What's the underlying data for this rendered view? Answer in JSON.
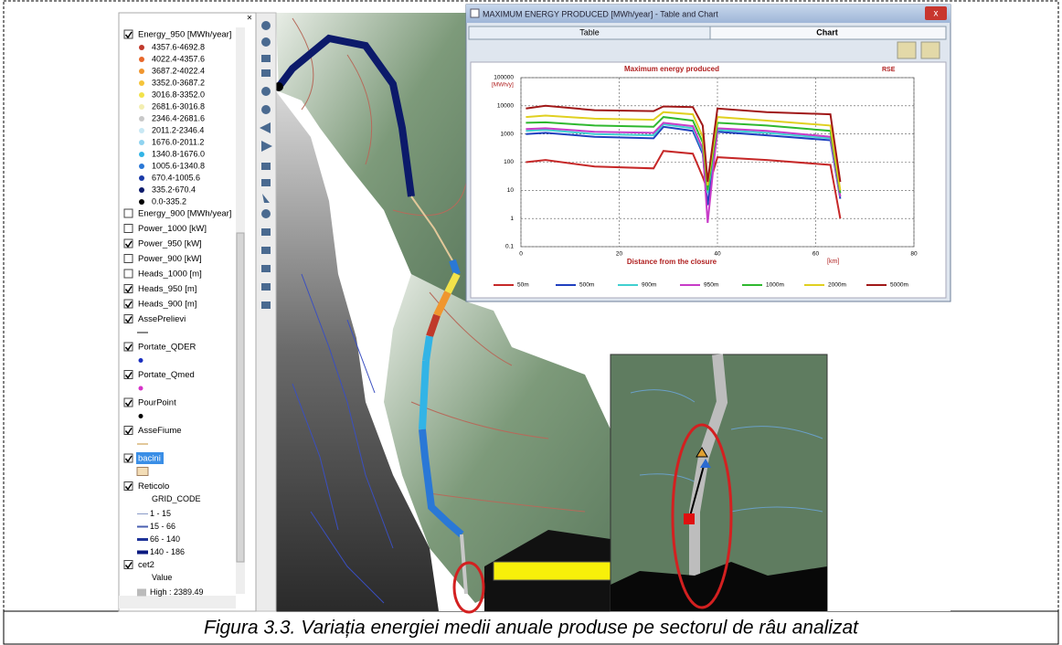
{
  "layer_panel": {
    "layers": [
      {
        "label": "Energy_950 [MWh/year]",
        "checked": true,
        "classes": [
          {
            "label": "4357.6-4692.8",
            "color": "#c0392b"
          },
          {
            "label": "4022.4-4357.6",
            "color": "#e8672a"
          },
          {
            "label": "3687.2-4022.4",
            "color": "#f0962e"
          },
          {
            "label": "3352.0-3687.2",
            "color": "#f5c43a"
          },
          {
            "label": "3016.8-3352.0",
            "color": "#f2e24a"
          },
          {
            "label": "2681.6-3016.8",
            "color": "#f3eeb0"
          },
          {
            "label": "2346.4-2681.6",
            "color": "#c8c8c8"
          },
          {
            "label": "2011.2-2346.4",
            "color": "#c8e8f4"
          },
          {
            "label": "1676.0-2011.2",
            "color": "#8fd3f0"
          },
          {
            "label": "1340.8-1676.0",
            "color": "#32b4e6"
          },
          {
            "label": "1005.6-1340.8",
            "color": "#2a78d6"
          },
          {
            "label": "670.4-1005.6",
            "color": "#1a3aa8"
          },
          {
            "label": "335.2-670.4",
            "color": "#0c1a6a"
          },
          {
            "label": "0.0-335.2",
            "color": "#000000"
          }
        ]
      },
      {
        "label": "Energy_900 [MWh/year]",
        "checked": false
      },
      {
        "label": "Power_1000 [kW]",
        "checked": false
      },
      {
        "label": "Power_950 [kW]",
        "checked": true
      },
      {
        "label": "Power_900 [kW]",
        "checked": false
      },
      {
        "label": "Heads_1000 [m]",
        "checked": false
      },
      {
        "label": "Heads_950 [m]",
        "checked": true
      },
      {
        "label": "Heads_900 [m]",
        "checked": true
      },
      {
        "label": "AssePrelievi",
        "checked": true,
        "symbol_color": "#888888"
      },
      {
        "label": "Portate_QDER",
        "checked": true,
        "symbol_color": "#1a2fbf"
      },
      {
        "label": "Portate_Qmed",
        "checked": true,
        "symbol_color": "#d633c8"
      },
      {
        "label": "PourPoint",
        "checked": true,
        "symbol_color": "#000000"
      },
      {
        "label": "AsseFiume",
        "checked": true,
        "symbol_color": "#e2c89a"
      },
      {
        "label": "bacini",
        "checked": true,
        "symbol_color": "#f3ddb6",
        "selected": true
      },
      {
        "label": "Reticolo",
        "checked": true,
        "field": "GRID_CODE",
        "classes": [
          {
            "label": "1 - 15",
            "color": "#8a9bc8"
          },
          {
            "label": "15 - 66",
            "color": "#4a5fb0"
          },
          {
            "label": "66 - 140",
            "color": "#1f3499"
          },
          {
            "label": "140 - 186",
            "color": "#0b1a80"
          }
        ]
      },
      {
        "label": "cet2",
        "checked": true,
        "field": "Value",
        "classes": [
          {
            "label": "High : 2389.49",
            "color": "#bbbbbb"
          }
        ]
      }
    ]
  },
  "chart_window": {
    "title": "MAXIMUM ENERGY PRODUCED [MWh/year] - Table and Chart",
    "tabs": [
      "Table",
      "Chart"
    ],
    "chart_data": {
      "type": "line",
      "title": "Maximum energy produced",
      "brand": "RSE",
      "y_label": "[MWh/y]",
      "x_label": "Distance from the closure",
      "x_unit": "[km]",
      "log_y": true,
      "grid": true,
      "xlim": [
        0,
        80
      ],
      "xticks": [
        0,
        20,
        40,
        60,
        80
      ],
      "ylim": [
        0.1,
        100000
      ],
      "yticks": [
        100000,
        10000,
        1000,
        100,
        10,
        1,
        0.1
      ],
      "x": [
        1,
        5,
        15,
        27,
        29,
        35,
        37,
        38,
        40,
        50,
        63,
        65
      ],
      "series": [
        {
          "name": "50m",
          "color": "#c62828",
          "values": [
            100,
            120,
            70,
            60,
            250,
            200,
            30,
            10,
            150,
            120,
            80,
            1
          ]
        },
        {
          "name": "500m",
          "color": "#1f3fbf",
          "values": [
            1000,
            1100,
            800,
            700,
            1800,
            1300,
            200,
            3,
            1200,
            900,
            600,
            5
          ]
        },
        {
          "name": "900m",
          "color": "#40d0d0",
          "values": [
            1300,
            1400,
            1000,
            900,
            2200,
            1600,
            250,
            8,
            1400,
            1100,
            700,
            6
          ]
        },
        {
          "name": "950m",
          "color": "#c83cc8",
          "values": [
            1500,
            1600,
            1200,
            1100,
            2500,
            1900,
            300,
            0.7,
            1600,
            1300,
            800,
            6
          ]
        },
        {
          "name": "1000m",
          "color": "#2fb82f",
          "values": [
            2500,
            2600,
            2000,
            1800,
            4000,
            3000,
            500,
            10,
            2500,
            2000,
            1300,
            8
          ]
        },
        {
          "name": "2000m",
          "color": "#e0d020",
          "values": [
            4000,
            4500,
            3500,
            3200,
            6000,
            5000,
            800,
            15,
            4000,
            3000,
            2000,
            10
          ]
        },
        {
          "name": "5000m",
          "color": "#a01818",
          "values": [
            8000,
            10000,
            7000,
            6500,
            9500,
            9000,
            2000,
            20,
            8000,
            6000,
            5000,
            20
          ]
        }
      ]
    }
  },
  "caption": "Figura 3.3. Variația energiei medii anuale produse pe sectorul de râu analizat"
}
